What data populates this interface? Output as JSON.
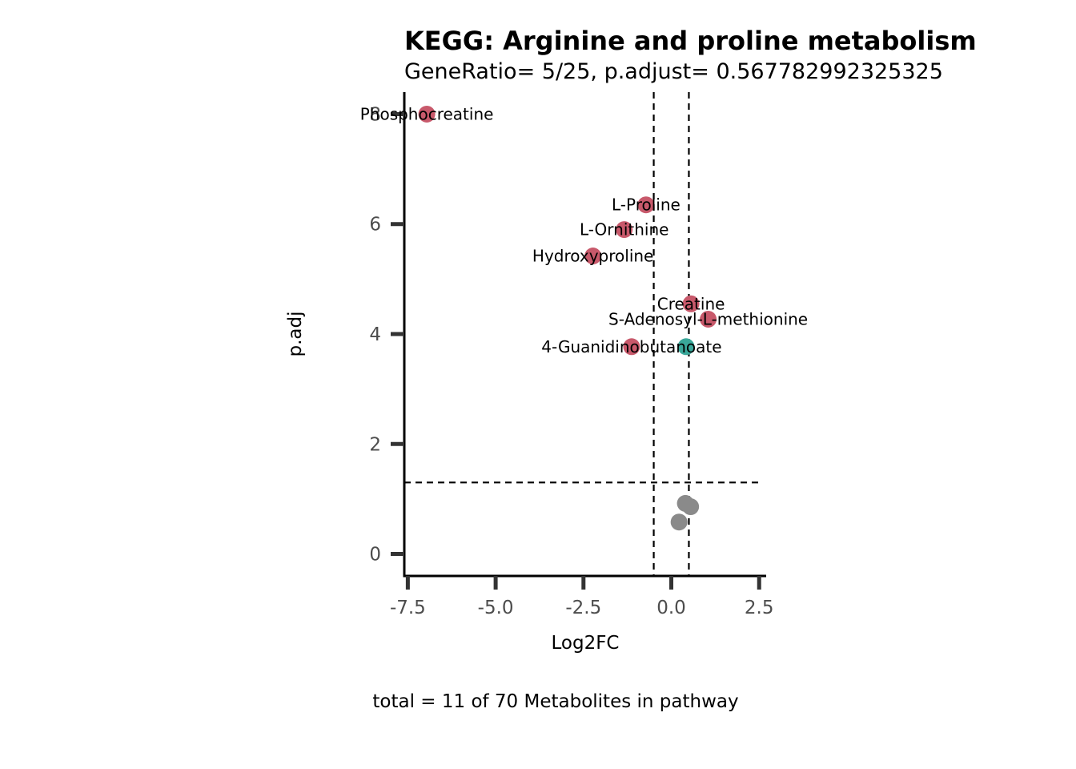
{
  "chart_data": {
    "type": "scatter",
    "title": "KEGG: Arginine and proline metabolism",
    "subtitle": "GeneRatio= 5/25, p.adjust= 0.567782992325325",
    "xlabel": "Log2FC",
    "ylabel": "p.adj",
    "caption": "total = 11 of 70 Metabolites in pathway",
    "xlim": [
      -7.6,
      2.7
    ],
    "ylim": [
      -0.4,
      8.4
    ],
    "x_ticks": [
      -7.5,
      -5.0,
      -2.5,
      0.0,
      2.5
    ],
    "x_tick_labels": [
      "-7.5",
      "-5.0",
      "-2.5",
      "0.0",
      "2.5"
    ],
    "y_ticks": [
      0,
      2,
      4,
      6,
      8
    ],
    "y_tick_labels": [
      "0",
      "2",
      "4",
      "6",
      "8"
    ],
    "vlines": [
      -0.5,
      0.5
    ],
    "hlines": [
      1.3
    ],
    "grid": false,
    "colors": {
      "down": "#C8596B",
      "up": "#3AA89A",
      "ns": "#8A8A8A"
    },
    "points": [
      {
        "label": "Phosphocreatine",
        "x": -6.96,
        "y": 8.0,
        "group": "down"
      },
      {
        "label": "L-Proline",
        "x": -0.72,
        "y": 6.35,
        "group": "down"
      },
      {
        "label": "L-Ornithine",
        "x": -1.34,
        "y": 5.9,
        "group": "down"
      },
      {
        "label": "Hydroxyproline",
        "x": -2.23,
        "y": 5.42,
        "group": "down"
      },
      {
        "label": "Creatine",
        "x": 0.56,
        "y": 4.55,
        "group": "down"
      },
      {
        "label": "S-Adenosyl-L-methionine",
        "x": 1.05,
        "y": 4.27,
        "group": "down"
      },
      {
        "label": "4-Guanidinobutanoate",
        "x": -1.13,
        "y": 3.77,
        "group": "down"
      },
      {
        "label": "",
        "x": 0.42,
        "y": 3.77,
        "group": "up"
      },
      {
        "label": "",
        "x": 0.4,
        "y": 0.92,
        "group": "ns"
      },
      {
        "label": "",
        "x": 0.55,
        "y": 0.86,
        "group": "ns"
      },
      {
        "label": "",
        "x": 0.22,
        "y": 0.58,
        "group": "ns"
      }
    ]
  }
}
